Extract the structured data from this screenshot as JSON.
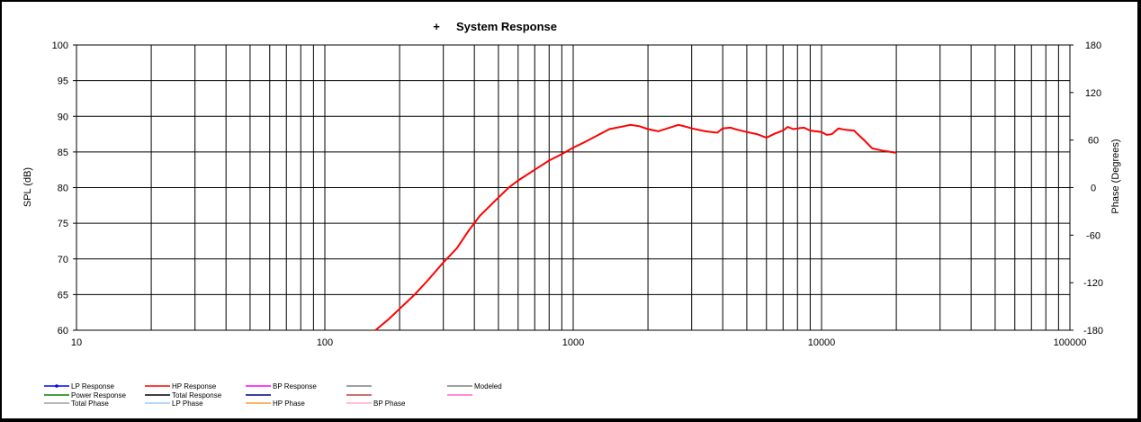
{
  "chart_data": {
    "type": "line",
    "title": "System Response",
    "title_marker": "+",
    "xlabel": "",
    "ylabel": "SPL (dB)",
    "y2label": "Phase (Degrees)",
    "x_scale": "log",
    "xlim": [
      10,
      100000
    ],
    "ylim": [
      60,
      100
    ],
    "y2lim": [
      -180,
      180
    ],
    "x_ticks": [
      "10",
      "100",
      "1000",
      "10000",
      "100000"
    ],
    "y_ticks": [
      "60",
      "65",
      "70",
      "75",
      "80",
      "85",
      "90",
      "95",
      "100"
    ],
    "y2_ticks": [
      "-180",
      "-120",
      "-60",
      "0",
      "60",
      "120",
      "180"
    ],
    "grid": true,
    "legend_position": "bottom",
    "series": [
      {
        "name": "HP Response",
        "color": "#ff0000",
        "x": [
          160,
          180,
          200,
          230,
          260,
          300,
          340,
          380,
          420,
          480,
          550,
          600,
          700,
          800,
          900,
          1000,
          1100,
          1250,
          1400,
          1600,
          1700,
          1850,
          2000,
          2200,
          2500,
          2650,
          2800,
          3000,
          3400,
          3800,
          4000,
          4300,
          4600,
          5000,
          5500,
          6000,
          6500,
          7000,
          7300,
          7700,
          8000,
          8500,
          9000,
          10000,
          10500,
          11000,
          11700,
          12500,
          13500,
          15000,
          16000,
          17500,
          19000,
          20000
        ],
        "values": [
          60,
          61.5,
          63,
          65,
          67,
          69.5,
          71.5,
          74,
          76,
          78,
          80,
          81,
          82.5,
          83.8,
          84.7,
          85.6,
          86.3,
          87.3,
          88.2,
          88.6,
          88.8,
          88.6,
          88.2,
          87.9,
          88.5,
          88.8,
          88.6,
          88.3,
          87.9,
          87.7,
          88.3,
          88.4,
          88.1,
          87.8,
          87.5,
          87,
          87.6,
          88,
          88.5,
          88.2,
          88.3,
          88.4,
          88,
          87.8,
          87.4,
          87.5,
          88.3,
          88.1,
          88,
          86.5,
          85.5,
          85.2,
          85,
          84.9
        ]
      }
    ]
  },
  "legend": {
    "items": [
      {
        "label": "LP Response",
        "color": "#0000ff",
        "marker": true
      },
      {
        "label": "HP Response",
        "color": "#ff0000"
      },
      {
        "label": "BP Response",
        "color": "#ff00ff"
      },
      {
        "label": "",
        "color": "#808080"
      },
      {
        "label": "Modeled",
        "color": "#808080"
      },
      {
        "label": "Power Response",
        "color": "#008000"
      },
      {
        "label": "Total Response",
        "color": "#000000"
      },
      {
        "label": "",
        "color": "#000080"
      },
      {
        "label": "",
        "color": "#c04040"
      },
      {
        "label": "",
        "color": "#ff66cc"
      },
      {
        "label": "Total Phase",
        "color": "#a0a0a0"
      },
      {
        "label": "LP Phase",
        "color": "#99ccff"
      },
      {
        "label": "HP Phase",
        "color": "#ff9933"
      },
      {
        "label": "BP Phase",
        "color": "#ffaacc"
      }
    ]
  }
}
